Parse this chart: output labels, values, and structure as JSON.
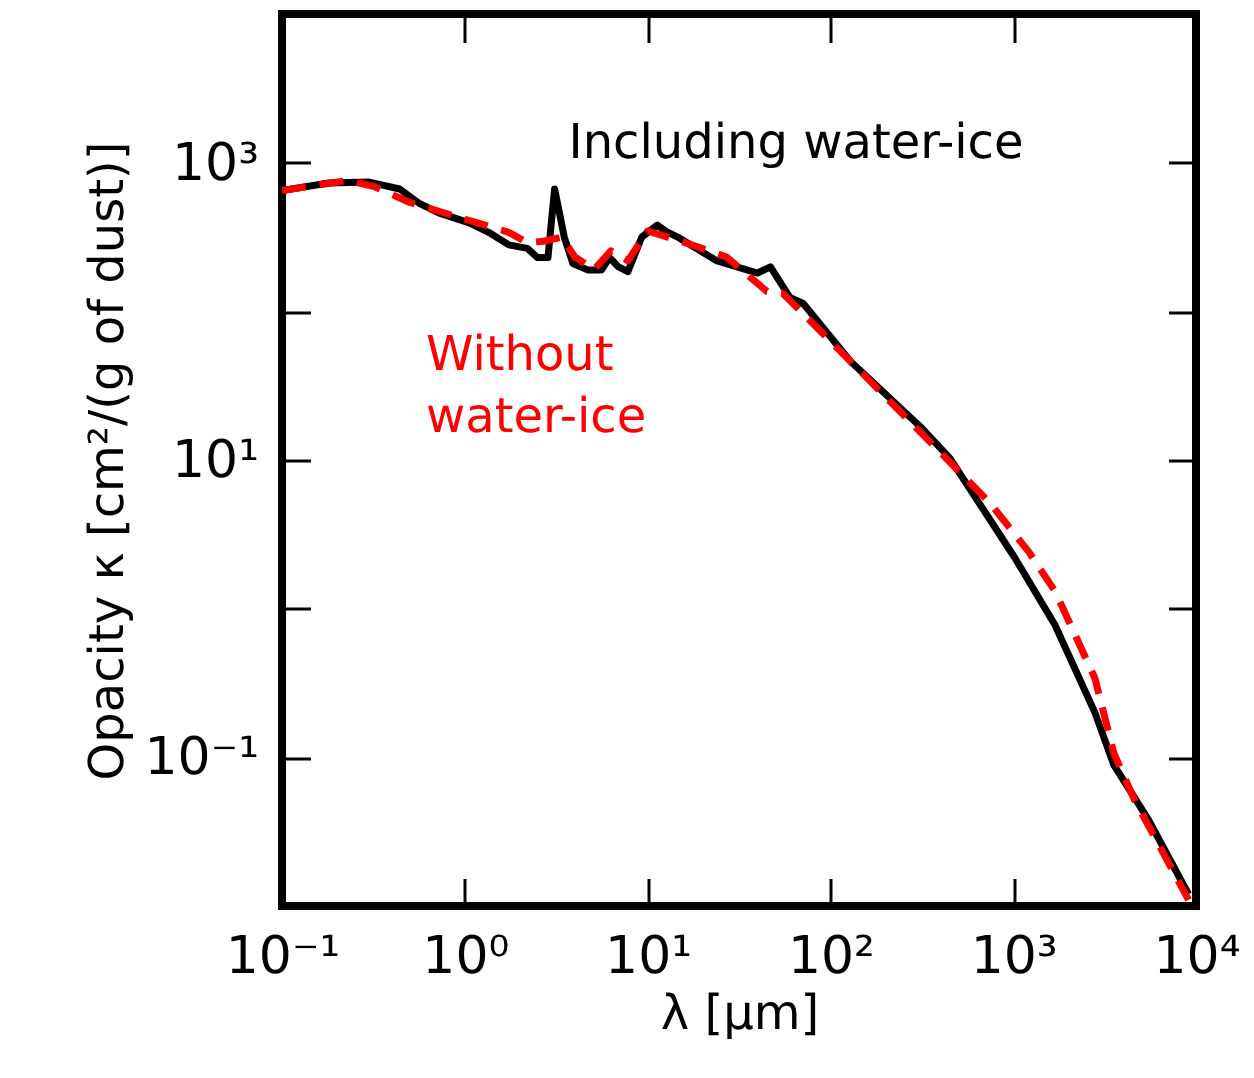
{
  "chart_data": {
    "type": "line",
    "xlabel": "λ [μm]",
    "ylabel": "Opacity κ [cm²/(g of dust)]",
    "log": "xy",
    "xlim": [
      0.1,
      10000
    ],
    "ylim": [
      0.01,
      10000
    ],
    "xticks": [
      {
        "value": 0.1,
        "label": "10⁻¹"
      },
      {
        "value": 1,
        "label": "10⁰"
      },
      {
        "value": 10,
        "label": "10¹"
      },
      {
        "value": 100,
        "label": "10²"
      },
      {
        "value": 1000,
        "label": "10³"
      },
      {
        "value": 10000,
        "label": "10⁴"
      }
    ],
    "yticks": [
      {
        "value": 0.01,
        "label": null
      },
      {
        "value": 0.1,
        "label": "10⁻¹"
      },
      {
        "value": 1,
        "label": null
      },
      {
        "value": 10,
        "label": "10¹"
      },
      {
        "value": 100,
        "label": null
      },
      {
        "value": 1000,
        "label": "10³"
      },
      {
        "value": 10000,
        "label": null
      }
    ],
    "series": [
      {
        "name": "Including water-ice",
        "color": "#000000",
        "line_style": "solid",
        "x": [
          0.1,
          0.18,
          0.3,
          0.44,
          0.56,
          0.72,
          1.05,
          1.35,
          1.74,
          2.2,
          2.5,
          2.85,
          3.1,
          3.5,
          3.9,
          4.7,
          5.6,
          6.2,
          6.9,
          7.8,
          9.3,
          11.3,
          12.6,
          14.6,
          24,
          40,
          47,
          60,
          71,
          129,
          316,
          450,
          1020,
          1690,
          2800,
          3550,
          5500,
          9100
        ],
        "values": [
          650,
          730,
          740,
          665,
          535,
          460,
          395,
          340,
          280,
          265,
          230,
          230,
          665,
          316,
          210,
          190,
          190,
          230,
          200,
          185,
          316,
          380,
          345,
          316,
          218,
          181,
          199,
          124,
          113,
          46,
          16.4,
          10.3,
          2.2,
          0.78,
          0.2,
          0.089,
          0.038,
          0.012
        ]
      },
      {
        "name": "Without\nwater-ice",
        "color": "#ff0000",
        "line_style": "dashed",
        "x": [
          0.1,
          0.23,
          0.32,
          0.5,
          1.05,
          1.74,
          2.2,
          2.7,
          3.4,
          4.0,
          5.1,
          6.3,
          7.8,
          10,
          15.3,
          27,
          45,
          55,
          139,
          407,
          740,
          1220,
          1700,
          2800,
          3550,
          4600,
          9100
        ],
        "values": [
          650,
          760,
          690,
          540,
          410,
          340,
          290,
          296,
          316,
          232,
          191,
          255,
          219,
          347,
          296,
          232,
          136,
          132,
          42,
          11,
          5.2,
          2.4,
          1.3,
          0.34,
          0.107,
          0.052,
          0.011
        ]
      }
    ]
  }
}
